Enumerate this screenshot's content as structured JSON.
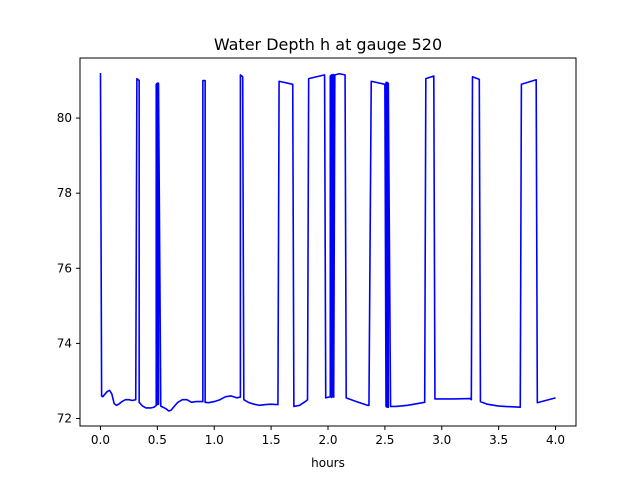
{
  "chart_data": {
    "type": "line",
    "title": "Water Depth h at gauge 520",
    "xlabel": "hours",
    "ylabel": "",
    "xlim": [
      -0.18,
      4.18
    ],
    "ylim": [
      71.8,
      81.6
    ],
    "xticks": [
      0.0,
      0.5,
      1.0,
      1.5,
      2.0,
      2.5,
      3.0,
      3.5,
      4.0
    ],
    "xtick_labels": [
      "0.0",
      "0.5",
      "1.0",
      "1.5",
      "2.0",
      "2.5",
      "3.0",
      "3.5",
      "4.0"
    ],
    "yticks": [
      72,
      74,
      76,
      78,
      80
    ],
    "ytick_labels": [
      "72",
      "74",
      "76",
      "78",
      "80"
    ],
    "grid": false,
    "series": [
      {
        "color": "#0000ff",
        "x": [
          0.0,
          0.01,
          0.02,
          0.04,
          0.06,
          0.08,
          0.1,
          0.12,
          0.14,
          0.16,
          0.18,
          0.2,
          0.22,
          0.25,
          0.28,
          0.31,
          0.32,
          0.34,
          0.34,
          0.37,
          0.4,
          0.44,
          0.47,
          0.49,
          0.49,
          0.5,
          0.5,
          0.51,
          0.51,
          0.53,
          0.55,
          0.58,
          0.6,
          0.62,
          0.65,
          0.68,
          0.72,
          0.76,
          0.8,
          0.84,
          0.88,
          0.9,
          0.9,
          0.92,
          0.92,
          0.95,
          1.0,
          1.05,
          1.1,
          1.15,
          1.2,
          1.23,
          1.23,
          1.25,
          1.26,
          1.3,
          1.35,
          1.4,
          1.45,
          1.5,
          1.55,
          1.56,
          1.57,
          1.69,
          1.7,
          1.75,
          1.8,
          1.82,
          1.83,
          1.9,
          1.97,
          1.98,
          2.02,
          2.02,
          2.03,
          2.03,
          2.04,
          2.04,
          2.05,
          2.05,
          2.06,
          2.1,
          2.15,
          2.16,
          2.25,
          2.35,
          2.36,
          2.38,
          2.5,
          2.51,
          2.51,
          2.52,
          2.52,
          2.53,
          2.53,
          2.55,
          2.6,
          2.7,
          2.85,
          2.86,
          2.93,
          2.94,
          3.1,
          3.25,
          3.26,
          3.27,
          3.33,
          3.34,
          3.4,
          3.5,
          3.69,
          3.7,
          3.83,
          3.84,
          3.9,
          4.0
        ],
        "y": [
          81.2,
          72.6,
          72.58,
          72.65,
          72.72,
          72.75,
          72.65,
          72.4,
          72.35,
          72.38,
          72.43,
          72.47,
          72.5,
          72.5,
          72.48,
          72.5,
          81.05,
          81.0,
          72.43,
          72.33,
          72.28,
          72.28,
          72.3,
          72.35,
          80.9,
          80.93,
          72.37,
          72.38,
          80.93,
          72.33,
          72.3,
          72.25,
          72.2,
          72.22,
          72.33,
          72.43,
          72.5,
          72.5,
          72.43,
          72.45,
          72.45,
          72.45,
          81.0,
          81.0,
          72.43,
          72.42,
          72.45,
          72.5,
          72.58,
          72.6,
          72.55,
          72.57,
          81.15,
          81.1,
          72.5,
          72.43,
          72.38,
          72.35,
          72.37,
          72.38,
          72.37,
          72.37,
          80.98,
          80.9,
          72.32,
          72.35,
          72.45,
          72.5,
          81.05,
          81.1,
          81.15,
          72.55,
          72.58,
          81.12,
          81.15,
          72.56,
          72.58,
          81.15,
          81.16,
          72.57,
          81.15,
          81.18,
          81.15,
          72.55,
          72.45,
          72.35,
          72.35,
          80.98,
          80.9,
          72.32,
          80.95,
          80.95,
          72.3,
          72.3,
          80.93,
          72.32,
          72.32,
          72.35,
          72.43,
          81.05,
          81.12,
          72.52,
          72.52,
          72.53,
          72.5,
          81.1,
          81.03,
          72.45,
          72.38,
          72.33,
          72.3,
          80.9,
          81.02,
          72.42,
          72.47,
          72.55
        ]
      }
    ]
  }
}
